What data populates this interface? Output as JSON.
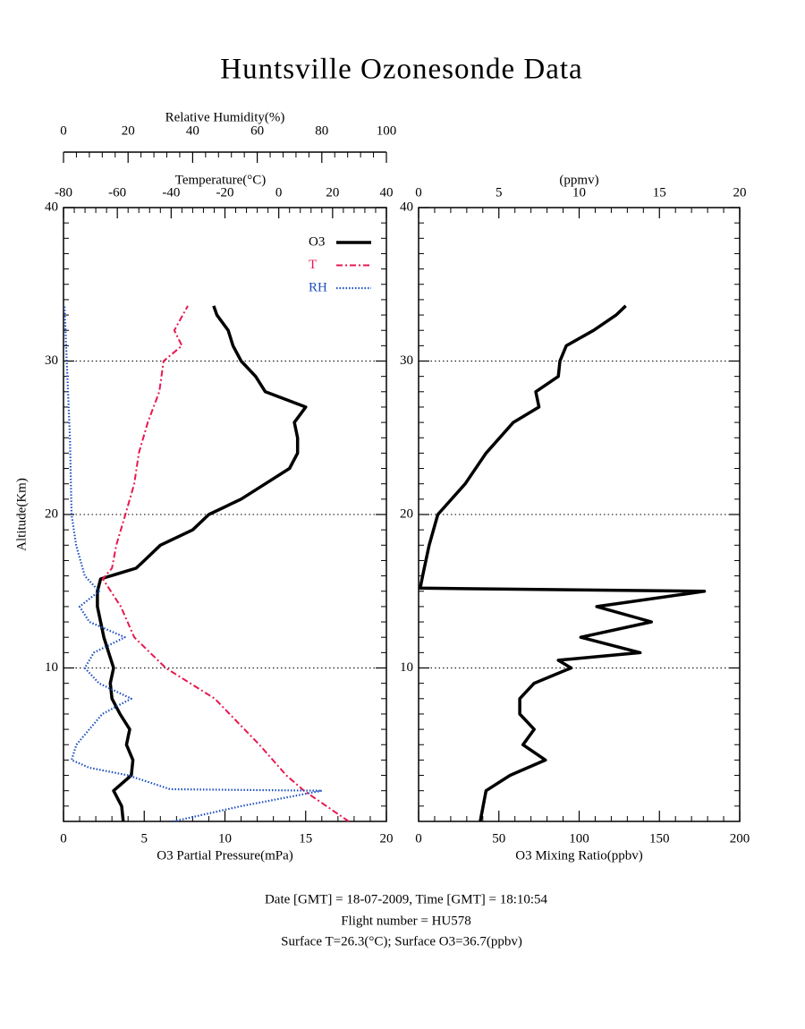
{
  "title": "Huntsville Ozonesonde Data",
  "footer": [
    "Date [GMT] = 18-07-2009,  Time [GMT] = 18:10:54",
    "Flight number = HU578",
    "Surface T=26.3(°C); Surface O3=36.7(ppbv)"
  ],
  "chart_data": [
    {
      "type": "line",
      "ylabel": "Altitude(Km)",
      "ylim": [
        0,
        40
      ],
      "yticks": [
        10,
        20,
        30,
        40
      ],
      "grid": true,
      "xlabel": "O3 Partial Pressure(mPa)",
      "xlim": [
        0,
        20
      ],
      "xticks": [
        0,
        5,
        10,
        15,
        20
      ],
      "x2label": "Temperature(°C)",
      "x2lim": [
        -80,
        40
      ],
      "x2ticks": [
        -80,
        -60,
        -40,
        -20,
        0,
        20,
        40
      ],
      "x3label": "Relative Humidity(%)",
      "x3lim": [
        0,
        100
      ],
      "x3ticks": [
        0,
        20,
        40,
        60,
        80,
        100
      ],
      "legend": "upper right",
      "series": [
        {
          "name": "O3",
          "color": "#000000",
          "axis": "x",
          "line_style": "solid",
          "altitude": [
            0,
            1,
            2,
            3,
            4,
            5,
            6,
            7,
            8,
            9,
            10,
            11,
            12,
            13,
            14,
            15,
            15.8,
            16.5,
            17,
            18,
            19,
            20,
            21,
            22,
            23,
            24,
            25,
            26,
            27,
            28,
            29,
            30,
            31,
            32,
            33,
            33.6
          ],
          "values": [
            3.7,
            3.6,
            3.1,
            4.2,
            4.3,
            3.9,
            4.1,
            3.5,
            3.0,
            2.9,
            3.1,
            2.8,
            2.5,
            2.3,
            2.1,
            2.1,
            2.3,
            4.5,
            5,
            6,
            8,
            9,
            11,
            12.5,
            14,
            14.5,
            14.5,
            14.3,
            15,
            12.5,
            11.9,
            11,
            10.5,
            10.2,
            9.5,
            9.3
          ]
        },
        {
          "name": "T",
          "color": "#e8174f",
          "axis": "x2",
          "line_style": "dashdot",
          "altitude": [
            0,
            2,
            3,
            5,
            8,
            10,
            12,
            14,
            15.8,
            16.5,
            18,
            20,
            22,
            24,
            26,
            28,
            30,
            31,
            32,
            33.6
          ],
          "values": [
            26,
            9.4,
            2.8,
            -7.2,
            -23.8,
            -42,
            -53.7,
            -58.7,
            -65.4,
            -62,
            -60.4,
            -57,
            -53.7,
            -52,
            -48.7,
            -44.4,
            -42.8,
            -36,
            -38.8,
            -33.8
          ]
        },
        {
          "name": "RH",
          "color": "#1e50c0",
          "axis": "x3",
          "line_style": "dotted",
          "altitude": [
            0,
            1,
            2,
            2.1,
            3,
            3.5,
            4,
            5,
            6,
            7,
            8,
            9,
            10,
            11,
            12,
            13,
            14,
            15,
            16,
            18,
            20,
            25,
            30,
            33.6
          ],
          "values": [
            34,
            55,
            80,
            33,
            20,
            8,
            2.5,
            4,
            8,
            12,
            21,
            11,
            6.6,
            9.4,
            19,
            8,
            5,
            11,
            6.6,
            3.9,
            2.5,
            2,
            1,
            0.3
          ]
        }
      ]
    },
    {
      "type": "line",
      "ylim": [
        0,
        40
      ],
      "yticks": [
        10,
        20,
        30,
        40
      ],
      "grid": true,
      "xlabel": "O3 Mixing Ratio(ppbv)",
      "xlim": [
        0,
        200
      ],
      "xticks": [
        0,
        50,
        100,
        150,
        200
      ],
      "x2label": "(ppmv)",
      "x2lim": [
        0,
        20
      ],
      "x2ticks": [
        0,
        5,
        10,
        15,
        20
      ],
      "series": [
        {
          "color": "#000000",
          "axis": "x",
          "line_style": "solid",
          "altitude": [
            0,
            2,
            3,
            4,
            5,
            6,
            7,
            8,
            9,
            10,
            10.5,
            11,
            12,
            13,
            14,
            15,
            15.2,
            16,
            18,
            20,
            22,
            24,
            26,
            27,
            28,
            29,
            30,
            31,
            32,
            33,
            33.6
          ],
          "values": [
            38.4,
            42,
            57,
            79,
            65,
            72,
            63,
            63,
            72,
            95,
            87,
            138,
            101,
            145,
            111,
            178,
            1,
            2.5,
            6.6,
            12,
            29,
            42,
            59,
            75,
            73,
            87,
            88,
            92,
            109,
            123,
            129
          ]
        }
      ]
    }
  ]
}
